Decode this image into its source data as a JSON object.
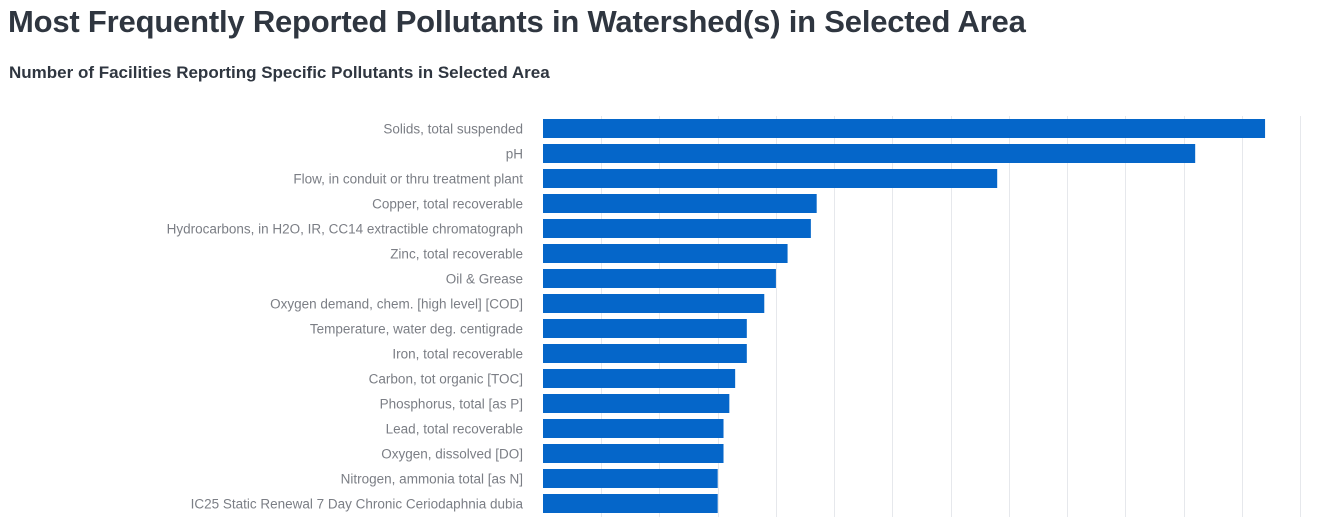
{
  "title": "Most Frequently Reported Pollutants in Watershed(s) in Selected Area",
  "subtitle": "Number of Facilities Reporting Specific Pollutants in Selected Area",
  "colors": {
    "bar": "#0566c9",
    "grid": "#e6e8ec",
    "label": "#7b7e85",
    "title": "#2f3640"
  },
  "chart_data": {
    "type": "bar",
    "orientation": "horizontal",
    "title": "Number of Facilities Reporting Specific Pollutants in Selected Area",
    "xlabel": "",
    "ylabel": "",
    "xlim": [
      0,
      65
    ],
    "grid": true,
    "categories": [
      "Solids, total suspended",
      "pH",
      "Flow, in conduit or thru treatment plant",
      "Copper, total recoverable",
      "Hydrocarbons, in H2O, IR, CC14 extractible chromatograph",
      "Zinc, total recoverable",
      "Oil & Grease",
      "Oxygen demand, chem. [high level] [COD]",
      "Temperature, water deg. centigrade",
      "Iron, total recoverable",
      "Carbon, tot organic [TOC]",
      "Phosphorus, total [as P]",
      "Lead, total recoverable",
      "Oxygen, dissolved [DO]",
      "Nitrogen, ammonia total [as N]",
      "IC25 Static Renewal 7 Day Chronic Ceriodaphnia dubia"
    ],
    "values": [
      62,
      56,
      39,
      23.5,
      23,
      21,
      20,
      19,
      17.5,
      17.5,
      16.5,
      16,
      15.5,
      15.5,
      15,
      15
    ]
  }
}
